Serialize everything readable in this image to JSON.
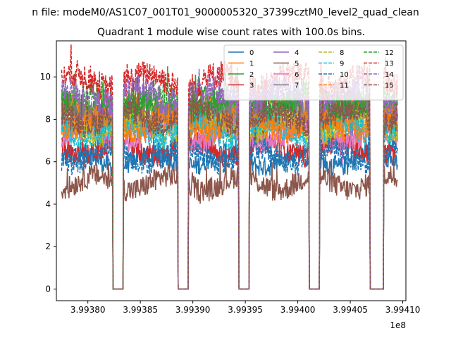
{
  "chart_data": {
    "type": "line",
    "suptitle": "n file: modeM0/AS1C07_001T01_9000005320_37399cztM0_level2_quad_clean",
    "title": "Quadrant 1 module wise count rates with 100.0s bins.",
    "xlabel": "",
    "ylabel": "",
    "x_offset_label": "1e8",
    "xlim": [
      3.99377,
      3.994103
    ],
    "ylim": [
      -0.55,
      11.7
    ],
    "xticks": [
      {
        "value": 3.9938,
        "label": "3.99380"
      },
      {
        "value": 3.99385,
        "label": "3.99385"
      },
      {
        "value": 3.9939,
        "label": "3.99390"
      },
      {
        "value": 3.99395,
        "label": "3.99395"
      },
      {
        "value": 3.994,
        "label": "3.99400"
      },
      {
        "value": 3.99405,
        "label": "3.99405"
      },
      {
        "value": 3.9941,
        "label": "3.99410"
      }
    ],
    "yticks": [
      {
        "value": 0,
        "label": "0"
      },
      {
        "value": 2,
        "label": "2"
      },
      {
        "value": 4,
        "label": "4"
      },
      {
        "value": 6,
        "label": "6"
      },
      {
        "value": 8,
        "label": "8"
      },
      {
        "value": 10,
        "label": "10"
      }
    ],
    "legend_position": "top-right",
    "legend_columns": 4,
    "gaps": [
      {
        "start": 3.993824,
        "end": 3.993834
      },
      {
        "start": 3.993886,
        "end": 3.993896
      },
      {
        "start": 3.993944,
        "end": 3.993954
      },
      {
        "start": 3.994011,
        "end": 3.994021
      },
      {
        "start": 3.994069,
        "end": 3.994082
      }
    ],
    "x_range": [
      3.993775,
      3.994095
    ],
    "sample_step": 5e-07,
    "series": [
      {
        "name": "0",
        "level": 6.1,
        "amp": 0.22,
        "color": "#1f77b4",
        "dash": "solid"
      },
      {
        "name": "1",
        "level": 8.3,
        "amp": 0.3,
        "color": "#ff7f0e",
        "dash": "solid"
      },
      {
        "name": "2",
        "level": 8.6,
        "amp": 0.3,
        "color": "#2ca02c",
        "dash": "solid"
      },
      {
        "name": "3",
        "level": 6.6,
        "amp": 0.25,
        "color": "#d62728",
        "dash": "solid"
      },
      {
        "name": "4",
        "level": 8.0,
        "amp": 0.3,
        "color": "#9467bd",
        "dash": "solid"
      },
      {
        "name": "5",
        "level": 5.0,
        "amp": 0.25,
        "color": "#8c564b",
        "dash": "solid"
      },
      {
        "name": "6",
        "level": 7.2,
        "amp": 0.25,
        "color": "#e377c2",
        "dash": "solid"
      },
      {
        "name": "7",
        "level": 8.1,
        "amp": 0.28,
        "color": "#7f7f7f",
        "dash": "solid"
      },
      {
        "name": "8",
        "level": 7.6,
        "amp": 0.28,
        "color": "#bcbd22",
        "dash": "dashed"
      },
      {
        "name": "9",
        "level": 7.5,
        "amp": 0.28,
        "color": "#17becf",
        "dash": "dashed"
      },
      {
        "name": "10",
        "level": 6.3,
        "amp": 0.25,
        "color": "#1f77b4",
        "dash": "dashed"
      },
      {
        "name": "11",
        "level": 7.8,
        "amp": 0.28,
        "color": "#ff7f0e",
        "dash": "dashed"
      },
      {
        "name": "12",
        "level": 8.9,
        "amp": 0.3,
        "color": "#2ca02c",
        "dash": "dashed"
      },
      {
        "name": "13",
        "level": 9.8,
        "amp": 0.3,
        "color": "#d62728",
        "dash": "dashed"
      },
      {
        "name": "14",
        "level": 9.1,
        "amp": 0.3,
        "color": "#9467bd",
        "dash": "dashed"
      },
      {
        "name": "15",
        "level": 8.1,
        "amp": 0.28,
        "color": "#8c564b",
        "dash": "dashed"
      }
    ]
  }
}
